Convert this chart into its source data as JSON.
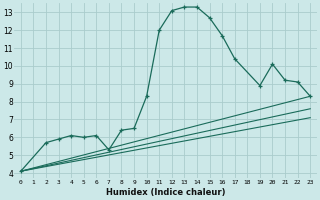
{
  "xlabel": "Humidex (Indice chaleur)",
  "bg_color": "#cce8e8",
  "grid_color": "#aacccc",
  "line_color": "#1a6b5a",
  "xlim": [
    -0.5,
    23.5
  ],
  "ylim": [
    3.7,
    13.5
  ],
  "xticks": [
    0,
    1,
    2,
    3,
    4,
    5,
    6,
    7,
    8,
    9,
    10,
    11,
    12,
    13,
    14,
    15,
    16,
    17,
    18,
    19,
    20,
    21,
    22,
    23
  ],
  "yticks": [
    4,
    5,
    6,
    7,
    8,
    9,
    10,
    11,
    12,
    13
  ],
  "curve_x": [
    0,
    2,
    3,
    4,
    5,
    6,
    7,
    8,
    9,
    10,
    11,
    12,
    13,
    14,
    15,
    16,
    17,
    19,
    20,
    21,
    22,
    23
  ],
  "curve_y": [
    4.1,
    5.7,
    5.9,
    6.1,
    6.0,
    6.1,
    5.3,
    6.4,
    6.5,
    8.3,
    12.0,
    13.1,
    13.3,
    13.3,
    12.7,
    11.7,
    10.4,
    8.9,
    10.1,
    9.2,
    9.1,
    8.3
  ],
  "line1_x": [
    0,
    23
  ],
  "line1_y": [
    4.1,
    8.3
  ],
  "line2_x": [
    0,
    23
  ],
  "line2_y": [
    4.1,
    7.6
  ],
  "line3_x": [
    0,
    23
  ],
  "line3_y": [
    4.1,
    7.1
  ]
}
